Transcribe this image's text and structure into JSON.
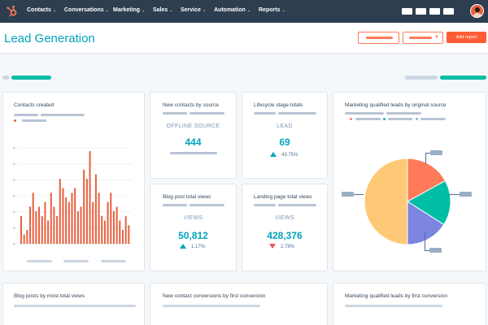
{
  "nav": {
    "items": [
      {
        "label": "Contacts"
      },
      {
        "label": "Conversations"
      },
      {
        "label": "Marketing"
      },
      {
        "label": "Sales"
      },
      {
        "label": "Service"
      },
      {
        "label": "Automation"
      },
      {
        "label": "Reports"
      }
    ],
    "chevron": "⌄",
    "logo_icon": "hubspot-sprocket-icon",
    "brand_color": "#ff7a59"
  },
  "header": {
    "title": "Lead Generation",
    "add_report_label": "Add report"
  },
  "cards": {
    "contacts_created": {
      "title": "Contacts created",
      "chart_data": {
        "type": "bar",
        "color": "#e8613f",
        "values": [
          30,
          10,
          15,
          40,
          55,
          35,
          40,
          30,
          45,
          25,
          55,
          40,
          30,
          70,
          60,
          50,
          45,
          55,
          60,
          35,
          40,
          80,
          70,
          100,
          45,
          75,
          55,
          30,
          25,
          45,
          55,
          35,
          40,
          25,
          15,
          30,
          20
        ]
      }
    },
    "new_contacts_by_source": {
      "title": "New contacts by source",
      "label": "OFFLINE SOURCE",
      "value": "444"
    },
    "lifecycle_stage_totals": {
      "title": "Lifecycle stage totals",
      "label": "LEAD",
      "value": "69",
      "delta": "43.75%",
      "delta_direction": "up"
    },
    "blog_post_total_views": {
      "title": "Blog post total views",
      "label": "VIEWS",
      "value": "50,812",
      "delta": "1.17%",
      "delta_direction": "up"
    },
    "landing_page_total_views": {
      "title": "Landing page total views",
      "label": "VIEWS",
      "value": "428,376",
      "delta": "2.78%",
      "delta_direction": "down"
    },
    "mql_by_source": {
      "title": "Marketing qualified leads by original source",
      "chart_data": {
        "type": "pie",
        "slices": [
          {
            "value": 17,
            "color": "#ff7a59"
          },
          {
            "value": 17,
            "color": "#00bda5"
          },
          {
            "value": 16,
            "color": "#7c85e0"
          },
          {
            "value": 50,
            "color": "#fdc976"
          }
        ]
      }
    },
    "blog_posts_by_views": {
      "title": "Blog posts by most total views"
    },
    "new_contact_conversions": {
      "title": "New contact conversions by first conversion"
    },
    "mql_by_first_conversion": {
      "title": "Marketing qualified leads by first conversion"
    }
  },
  "colors": {
    "accent": "#00a4bd",
    "orange": "#ff7a59",
    "teal": "#00bda5",
    "negative": "#f2545b",
    "nav_bg": "#2d3e50"
  }
}
